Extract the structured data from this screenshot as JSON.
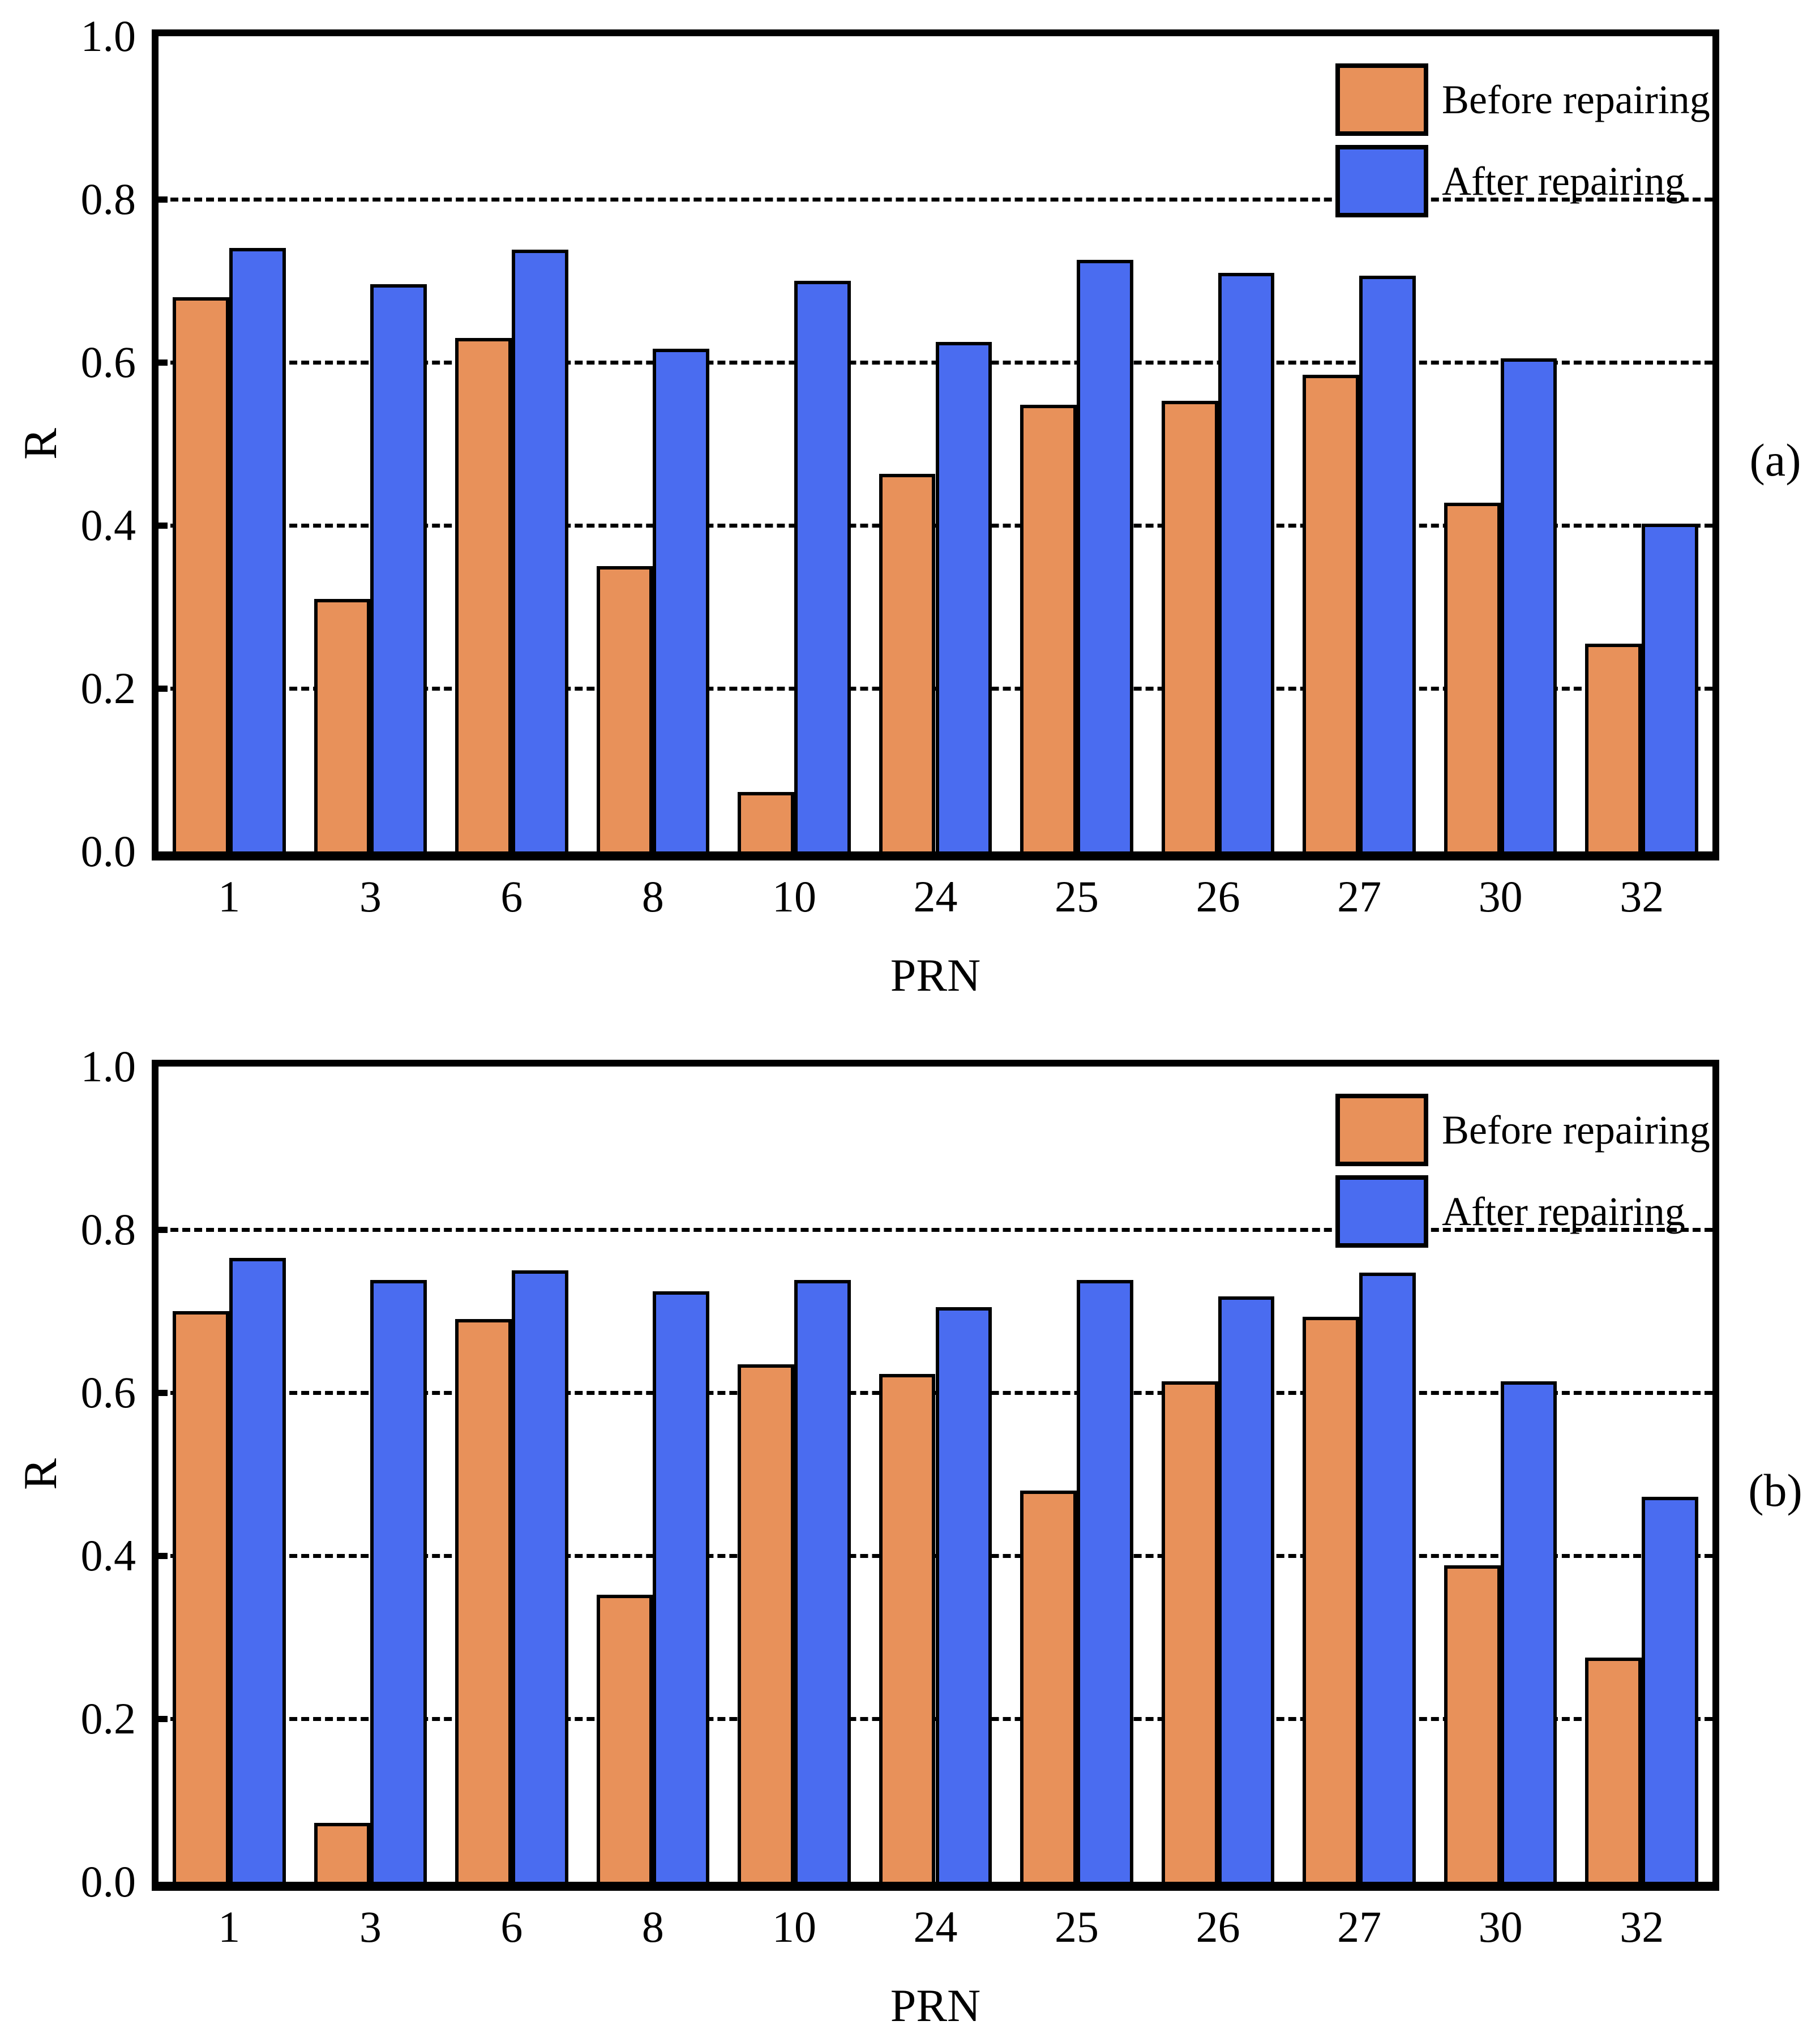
{
  "figure": {
    "background": "#ffffff",
    "text_color": "#000000"
  },
  "legend": {
    "before_label": "Before repairing",
    "after_label": "After repairing"
  },
  "chart_data": [
    {
      "type": "bar",
      "panel_label": "(a)",
      "title": "",
      "xlabel": "PRN",
      "ylabel": "R",
      "categories": [
        "1",
        "3",
        "6",
        "8",
        "10",
        "24",
        "25",
        "26",
        "27",
        "30",
        "32"
      ],
      "series": [
        {
          "name": "Before repairing",
          "color": "#e8915a",
          "values": [
            0.68,
            0.31,
            0.63,
            0.35,
            0.073,
            0.463,
            0.548,
            0.553,
            0.585,
            0.428,
            0.255
          ]
        },
        {
          "name": "After repairing",
          "color": "#4a6cf0",
          "values": [
            0.74,
            0.696,
            0.738,
            0.617,
            0.7,
            0.625,
            0.726,
            0.71,
            0.706,
            0.605,
            0.402
          ]
        }
      ],
      "ylim": [
        0.0,
        1.0
      ],
      "yticks": [
        0.0,
        0.2,
        0.4,
        0.6,
        0.8,
        1.0
      ],
      "grid": "horizontal-dashed",
      "legend_position": "top-right",
      "bar_edge_color": "#000000"
    },
    {
      "type": "bar",
      "panel_label": "(b)",
      "title": "",
      "xlabel": "PRN",
      "ylabel": "R",
      "categories": [
        "1",
        "3",
        "6",
        "8",
        "10",
        "24",
        "25",
        "26",
        "27",
        "30",
        "32"
      ],
      "series": [
        {
          "name": "Before repairing",
          "color": "#e8915a",
          "values": [
            0.7,
            0.072,
            0.69,
            0.352,
            0.635,
            0.623,
            0.48,
            0.614,
            0.693,
            0.388,
            0.275
          ]
        },
        {
          "name": "After repairing",
          "color": "#4a6cf0",
          "values": [
            0.765,
            0.738,
            0.75,
            0.724,
            0.738,
            0.705,
            0.738,
            0.718,
            0.747,
            0.614,
            0.472
          ]
        }
      ],
      "ylim": [
        0.0,
        1.0
      ],
      "yticks": [
        0.0,
        0.2,
        0.4,
        0.6,
        0.8,
        1.0
      ],
      "grid": "horizontal-dashed",
      "legend_position": "top-right",
      "bar_edge_color": "#000000"
    }
  ]
}
